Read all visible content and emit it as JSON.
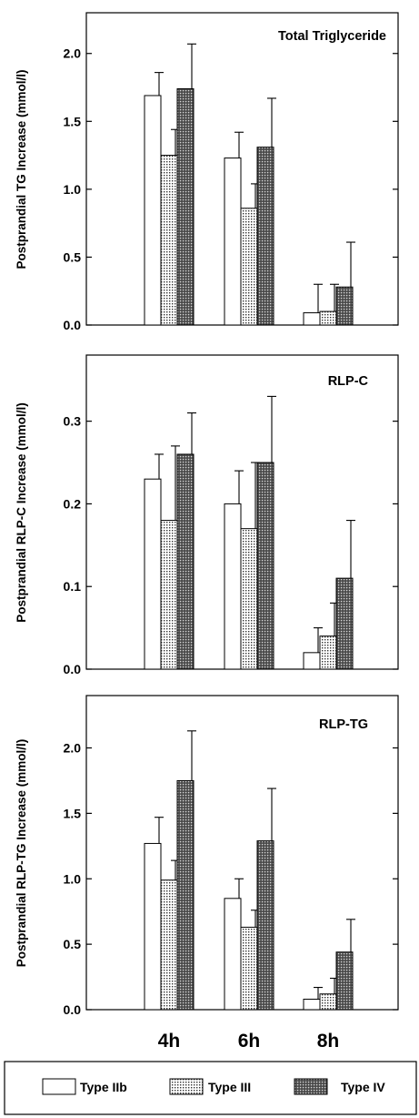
{
  "chart_data": [
    {
      "type": "bar",
      "title": "Total Triglyceride",
      "ylabel": "Postprandial TG Increase (mmol/l)",
      "categories": [
        "4h",
        "6h",
        "8h"
      ],
      "ylim": [
        0,
        2.3
      ],
      "yticks": [
        "0.0",
        "0.5",
        "1.0",
        "1.5",
        "2.0"
      ],
      "series": [
        {
          "name": "Type IIb",
          "values": [
            1.69,
            1.23,
            0.09
          ],
          "errors": [
            0.17,
            0.19,
            0.21
          ]
        },
        {
          "name": "Type III",
          "values": [
            1.25,
            0.86,
            0.1
          ],
          "errors": [
            0.19,
            0.18,
            0.2
          ]
        },
        {
          "name": "Type IV",
          "values": [
            1.74,
            1.31,
            0.28
          ],
          "errors": [
            0.33,
            0.36,
            0.33
          ]
        }
      ]
    },
    {
      "type": "bar",
      "title": "RLP-C",
      "ylabel": "Postprandial  RLP-C  Increase  (mmol/l)",
      "categories": [
        "4h",
        "6h",
        "8h"
      ],
      "ylim": [
        0,
        0.38
      ],
      "yticks": [
        "0.0",
        "0.1",
        "0.2",
        "0.3"
      ],
      "series": [
        {
          "name": "Type IIb",
          "values": [
            0.23,
            0.2,
            0.02
          ],
          "errors": [
            0.03,
            0.04,
            0.03
          ]
        },
        {
          "name": "Type III",
          "values": [
            0.18,
            0.17,
            0.04
          ],
          "errors": [
            0.09,
            0.08,
            0.04
          ]
        },
        {
          "name": "Type IV",
          "values": [
            0.26,
            0.25,
            0.11
          ],
          "errors": [
            0.05,
            0.08,
            0.07
          ]
        }
      ]
    },
    {
      "type": "bar",
      "title": "RLP-TG",
      "ylabel": "Postprandial RLP-TG Increase  (mmol/l)",
      "categories": [
        "4h",
        "6h",
        "8h"
      ],
      "ylim": [
        0,
        2.4
      ],
      "yticks": [
        "0.0",
        "0.5",
        "1.0",
        "1.5",
        "2.0"
      ],
      "series": [
        {
          "name": "Type IIb",
          "values": [
            1.27,
            0.85,
            0.08
          ],
          "errors": [
            0.2,
            0.15,
            0.09
          ]
        },
        {
          "name": "Type III",
          "values": [
            0.99,
            0.63,
            0.12
          ],
          "errors": [
            0.15,
            0.13,
            0.12
          ]
        },
        {
          "name": "Type IV",
          "values": [
            1.75,
            1.29,
            0.44
          ],
          "errors": [
            0.38,
            0.4,
            0.25
          ]
        }
      ]
    }
  ],
  "legend": [
    {
      "label": "Type IIb",
      "pattern": "open"
    },
    {
      "label": "Type III",
      "pattern": "dotted"
    },
    {
      "label": "Type IV",
      "pattern": "dark-hatched"
    }
  ]
}
